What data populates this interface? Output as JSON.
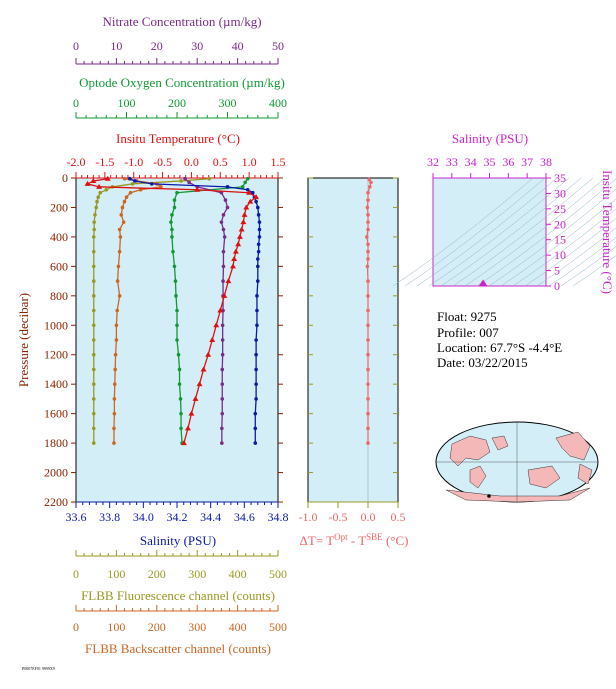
{
  "colors": {
    "nitrate": "#7a2a8a",
    "oxygen": "#119933",
    "temperature": "#dd1111",
    "salinity": "#0a1aaa",
    "fluorescence": "#999922",
    "backscatter": "#cc6622",
    "delta_t": "#ee6666",
    "ts_magenta": "#cc22cc",
    "panel_fill": "#d4eef8",
    "land": "#f4b8b8"
  },
  "metadata": {
    "float": "Float:  9275",
    "profile": "Profile:  007",
    "location": "Location:  67.7°S  -4.4°E",
    "date": "Date:  03/22/2015"
  },
  "footer_text": "P0007EF01 9999X9",
  "chart_data": [
    {
      "type": "line",
      "panel": "main-profile",
      "ylabel": "Pressure (decibar)",
      "y_range": [
        0,
        2200
      ],
      "y_inverted": true,
      "y_ticks": [
        0,
        200,
        400,
        600,
        800,
        1000,
        1200,
        1400,
        1600,
        1800,
        2000,
        2200
      ],
      "axes": {
        "nitrate": {
          "label": "Nitrate Concentration (µm/kg)",
          "range": [
            0,
            50
          ],
          "ticks": [
            0,
            10,
            20,
            30,
            40,
            50
          ],
          "position": "top"
        },
        "oxygen": {
          "label": "Optode Oxygen Concentration (µm/kg)",
          "range": [
            0,
            400
          ],
          "ticks": [
            0,
            100,
            200,
            300,
            400
          ],
          "position": "top"
        },
        "temperature": {
          "label": "Insitu Temperature (°C)",
          "range": [
            -2.0,
            1.5
          ],
          "ticks": [
            "-2.0",
            "-1.5",
            "-1.0",
            "-0.5",
            "0.0",
            "0.5",
            "1.0",
            "1.5"
          ],
          "position": "top"
        },
        "salinity": {
          "label": "Salinity (PSU)",
          "range": [
            33.6,
            34.8
          ],
          "ticks": [
            "33.6",
            "33.8",
            "34.0",
            "34.2",
            "34.4",
            "34.6",
            "34.8"
          ],
          "position": "bottom"
        },
        "fluorescence": {
          "label": "FLBB Fluorescence channel (counts)",
          "range": [
            0,
            500
          ],
          "ticks": [
            0,
            100,
            200,
            300,
            400,
            500
          ],
          "position": "bottom"
        },
        "backscatter": {
          "label": "FLBB Backscatter channel (counts)",
          "range": [
            0,
            500
          ],
          "ticks": [
            0,
            100,
            200,
            300,
            400,
            500
          ],
          "position": "bottom"
        }
      },
      "series": [
        {
          "key": "temperature",
          "marker": "triangle",
          "p": [
            5,
            20,
            40,
            60,
            80,
            100,
            130,
            160,
            200,
            250,
            300,
            350,
            400,
            450,
            500,
            550,
            600,
            700,
            800,
            900,
            1000,
            1100,
            1200,
            1300,
            1400,
            1500,
            1600,
            1700,
            1800
          ],
          "v": [
            -1.45,
            -1.7,
            -1.8,
            -1.6,
            0.1,
            1.0,
            1.12,
            1.02,
            0.95,
            0.92,
            0.9,
            0.87,
            0.84,
            0.81,
            0.77,
            0.74,
            0.72,
            0.64,
            0.57,
            0.5,
            0.43,
            0.36,
            0.29,
            0.21,
            0.14,
            0.07,
            0.0,
            -0.06,
            -0.13
          ]
        },
        {
          "key": "salinity",
          "marker": "circle",
          "p": [
            5,
            20,
            40,
            60,
            80,
            100,
            130,
            160,
            200,
            250,
            300,
            350,
            400,
            450,
            500,
            550,
            600,
            700,
            800,
            900,
            1000,
            1100,
            1200,
            1300,
            1400,
            1500,
            1600,
            1700,
            1800
          ],
          "v": [
            33.92,
            33.95,
            34.05,
            34.5,
            34.62,
            34.65,
            34.66,
            34.67,
            34.68,
            34.685,
            34.69,
            34.69,
            34.69,
            34.685,
            34.685,
            34.68,
            34.68,
            34.68,
            34.675,
            34.675,
            34.675,
            34.67,
            34.67,
            34.67,
            34.67,
            34.67,
            34.665,
            34.665,
            34.665
          ]
        },
        {
          "key": "nitrate",
          "marker": "circle",
          "p": [
            5,
            30,
            60,
            100,
            150,
            200,
            250,
            300,
            350,
            400,
            500,
            600,
            700,
            800,
            900,
            1000,
            1100,
            1200,
            1300,
            1400,
            1500,
            1600,
            1700,
            1800
          ],
          "v": [
            27,
            28,
            30,
            36,
            37,
            37.5,
            36.5,
            36,
            36.5,
            36.8,
            36.5,
            36.5,
            36.4,
            36.4,
            36.4,
            36.3,
            36.3,
            36.3,
            36.2,
            36.2,
            36.2,
            36.2,
            36.1,
            36.1
          ]
        },
        {
          "key": "oxygen",
          "marker": "circle",
          "p": [
            5,
            30,
            60,
            100,
            150,
            200,
            250,
            300,
            350,
            400,
            500,
            600,
            700,
            800,
            900,
            1000,
            1100,
            1200,
            1300,
            1400,
            1500,
            1600,
            1700,
            1800
          ],
          "v": [
            340,
            335,
            330,
            200,
            195,
            195,
            190,
            188,
            190,
            190,
            192,
            195,
            197,
            198,
            200,
            200,
            200,
            203,
            205,
            205,
            207,
            208,
            208,
            210
          ]
        },
        {
          "key": "fluorescence",
          "marker": "circle",
          "p": [
            5,
            20,
            40,
            60,
            80,
            100,
            130,
            160,
            200,
            250,
            300,
            350,
            400,
            500,
            600,
            700,
            800,
            900,
            1000,
            1100,
            1200,
            1300,
            1400,
            1500,
            1600,
            1700,
            1800
          ],
          "v": [
            330,
            260,
            140,
            90,
            75,
            60,
            55,
            52,
            50,
            47,
            45,
            45,
            44,
            44,
            44,
            44,
            44,
            44,
            44,
            44,
            44,
            44,
            44,
            44,
            44,
            44,
            44
          ]
        },
        {
          "key": "backscatter",
          "marker": "circle",
          "p": [
            5,
            20,
            40,
            60,
            80,
            100,
            130,
            160,
            200,
            250,
            300,
            350,
            400,
            500,
            600,
            700,
            800,
            900,
            1000,
            1100,
            1200,
            1300,
            1400,
            1500,
            1600,
            1700,
            1800
          ],
          "v": [
            120,
            150,
            200,
            210,
            160,
            135,
            125,
            120,
            115,
            112,
            118,
            108,
            110,
            108,
            105,
            103,
            108,
            102,
            100,
            100,
            98,
            97,
            96,
            95,
            95,
            94,
            94
          ]
        }
      ]
    },
    {
      "type": "line",
      "panel": "delta-t",
      "xlabel": "ΔT= T^Opt - T^SBE (°C)",
      "xlabel_main": "ΔT= T",
      "xlabel_sup1": "Opt",
      "xlabel_mid": " - T",
      "xlabel_sup2": "SBE",
      "xlabel_end": " (°C)",
      "x_range": [
        -1.0,
        0.5
      ],
      "x_ticks": [
        "-1.0",
        "-0.5",
        "0.0",
        "0.5"
      ],
      "y_range": [
        0,
        2200
      ],
      "series": [
        {
          "key": "delta_t",
          "p": [
            10,
            30,
            60,
            100,
            150,
            200,
            250,
            300,
            350,
            400,
            450,
            500,
            550,
            600,
            700,
            800,
            900,
            1000,
            1100,
            1200,
            1300,
            1400,
            1500,
            1600,
            1700,
            1800
          ],
          "v": [
            0.02,
            0.05,
            0.03,
            0.0,
            0.0,
            -0.01,
            0.0,
            0.0,
            0.0,
            -0.02,
            0.0,
            0.0,
            0.0,
            -0.01,
            0.0,
            0.0,
            0.0,
            0.0,
            0.0,
            0.0,
            0.0,
            0.0,
            0.0,
            0.0,
            0.0,
            0.0
          ]
        }
      ]
    },
    {
      "type": "scatter",
      "panel": "ts-diagram",
      "xlabel": "Salinity (PSU)",
      "ylabel": "Insitu Temperature (°C)",
      "x_range": [
        32,
        38
      ],
      "x_ticks": [
        32,
        33,
        34,
        35,
        36,
        37,
        38
      ],
      "y_range": [
        0,
        35
      ],
      "y_ticks": [
        0,
        5,
        10,
        15,
        20,
        25,
        30,
        35
      ],
      "points": [
        {
          "s": 34.66,
          "t": 0.5
        }
      ]
    }
  ]
}
